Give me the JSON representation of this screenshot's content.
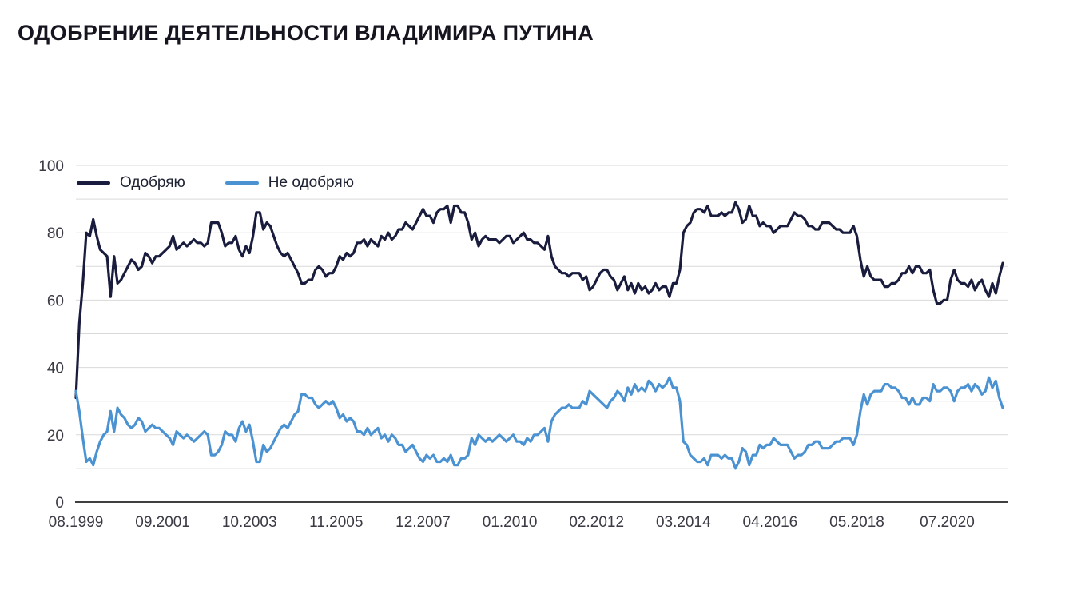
{
  "title": "ОДОБРЕНИЕ ДЕЯТЕЛЬНОСТИ ВЛАДИМИРА ПУТИНА",
  "colors": {
    "background": "#ffffff",
    "gridline": "#d9d9d9",
    "axis_line": "#3f3f3f",
    "tick_label": "#3b3b46",
    "title": "#15151f",
    "legend_text": "#1e2233",
    "approve_line": "#191c3d",
    "disapprove_line": "#4a92d2"
  },
  "chart_data": {
    "type": "line",
    "title": "ОДОБРЕНИЕ ДЕЯТЕЛЬНОСТИ ВЛАДИМИРА ПУТИНА",
    "x_unit": "month",
    "x_start": "08.1999",
    "x_end": "11.2021",
    "x_tick_labels": [
      "08.1999",
      "09.2001",
      "10.2003",
      "11.2005",
      "12.2007",
      "01.2010",
      "02.2012",
      "03.2014",
      "04.2016",
      "05.2018",
      "07.2020"
    ],
    "x_tick_month_indices": [
      0,
      25,
      50,
      75,
      100,
      125,
      150,
      175,
      200,
      225,
      251
    ],
    "ylim": [
      0,
      100
    ],
    "y_ticks": [
      0,
      20,
      40,
      60,
      80,
      100
    ],
    "grid": "horizontal every 10, light gray; dark baseline at 0",
    "legend_position": "top-left inside plot",
    "series": [
      {
        "name": "Одобряю",
        "color": "#191c3d",
        "values": [
          31,
          53,
          65,
          80,
          79,
          84,
          79,
          75,
          74,
          73,
          61,
          73,
          65,
          66,
          68,
          70,
          72,
          71,
          69,
          70,
          74,
          73,
          71,
          73,
          73,
          74,
          75,
          76,
          79,
          75,
          76,
          77,
          76,
          77,
          78,
          77,
          77,
          76,
          77,
          83,
          83,
          83,
          80,
          76,
          77,
          77,
          79,
          75,
          73,
          76,
          74,
          79,
          86,
          86,
          81,
          83,
          82,
          79,
          76,
          74,
          73,
          74,
          72,
          70,
          68,
          65,
          65,
          66,
          66,
          69,
          70,
          69,
          67,
          68,
          68,
          70,
          73,
          72,
          74,
          73,
          74,
          77,
          77,
          78,
          76,
          78,
          77,
          76,
          79,
          78,
          80,
          78,
          79,
          81,
          81,
          83,
          82,
          81,
          83,
          85,
          87,
          85,
          85,
          83,
          86,
          87,
          87,
          88,
          83,
          88,
          88,
          86,
          86,
          83,
          78,
          80,
          76,
          78,
          79,
          78,
          78,
          78,
          77,
          78,
          79,
          79,
          77,
          78,
          79,
          80,
          78,
          78,
          77,
          77,
          76,
          75,
          79,
          73,
          70,
          69,
          68,
          68,
          67,
          68,
          68,
          68,
          66,
          67,
          63,
          64,
          66,
          68,
          69,
          69,
          67,
          66,
          63,
          65,
          67,
          63,
          65,
          62,
          65,
          63,
          64,
          62,
          63,
          65,
          63,
          64,
          64,
          61,
          65,
          65,
          69,
          80,
          82,
          83,
          86,
          87,
          87,
          86,
          88,
          85,
          85,
          85,
          86,
          85,
          86,
          86,
          89,
          87,
          83,
          84,
          88,
          85,
          85,
          82,
          83,
          82,
          82,
          80,
          81,
          82,
          82,
          82,
          84,
          86,
          85,
          85,
          84,
          82,
          82,
          81,
          81,
          83,
          83,
          83,
          82,
          81,
          81,
          80,
          80,
          80,
          82,
          79,
          72,
          67,
          70,
          67,
          66,
          66,
          66,
          64,
          64,
          65,
          65,
          66,
          68,
          68,
          70,
          68,
          70,
          70,
          68,
          68,
          69,
          63,
          59,
          59,
          60,
          60,
          66,
          69,
          66,
          65,
          65,
          64,
          66,
          63,
          65,
          66,
          63,
          61,
          65,
          62,
          67,
          71
        ]
      },
      {
        "name": "Не одобряю",
        "color": "#4a92d2",
        "values": [
          33,
          27,
          19,
          12,
          13,
          11,
          15,
          18,
          20,
          21,
          27,
          21,
          28,
          26,
          25,
          23,
          22,
          23,
          25,
          24,
          21,
          22,
          23,
          22,
          22,
          21,
          20,
          19,
          17,
          21,
          20,
          19,
          20,
          19,
          18,
          19,
          20,
          21,
          20,
          14,
          14,
          15,
          17,
          21,
          20,
          20,
          18,
          22,
          24,
          21,
          23,
          18,
          12,
          12,
          17,
          15,
          16,
          18,
          20,
          22,
          23,
          22,
          24,
          26,
          27,
          32,
          32,
          31,
          31,
          29,
          28,
          29,
          30,
          29,
          30,
          28,
          25,
          26,
          24,
          25,
          24,
          21,
          21,
          20,
          22,
          20,
          21,
          22,
          19,
          20,
          18,
          20,
          19,
          17,
          17,
          15,
          16,
          17,
          15,
          13,
          12,
          14,
          13,
          14,
          12,
          12,
          13,
          12,
          14,
          11,
          11,
          13,
          13,
          14,
          19,
          17,
          20,
          19,
          18,
          19,
          18,
          19,
          20,
          19,
          18,
          19,
          20,
          18,
          18,
          17,
          19,
          18,
          20,
          20,
          21,
          22,
          18,
          24,
          26,
          27,
          28,
          28,
          29,
          28,
          28,
          28,
          30,
          29,
          33,
          32,
          31,
          30,
          29,
          28,
          30,
          31,
          33,
          32,
          30,
          34,
          32,
          35,
          33,
          34,
          33,
          36,
          35,
          33,
          35,
          34,
          35,
          37,
          34,
          34,
          30,
          18,
          17,
          14,
          13,
          12,
          12,
          13,
          11,
          14,
          14,
          14,
          13,
          14,
          13,
          13,
          10,
          12,
          16,
          15,
          11,
          14,
          14,
          17,
          16,
          17,
          17,
          19,
          18,
          17,
          17,
          17,
          15,
          13,
          14,
          14,
          15,
          17,
          17,
          18,
          18,
          16,
          16,
          16,
          17,
          18,
          18,
          19,
          19,
          19,
          17,
          20,
          27,
          32,
          29,
          32,
          33,
          33,
          33,
          35,
          35,
          34,
          34,
          33,
          31,
          31,
          29,
          31,
          29,
          29,
          31,
          31,
          30,
          35,
          33,
          33,
          34,
          34,
          33,
          30,
          33,
          34,
          34,
          35,
          33,
          35,
          34,
          32,
          33,
          37,
          34,
          36,
          31,
          28
        ]
      }
    ]
  }
}
